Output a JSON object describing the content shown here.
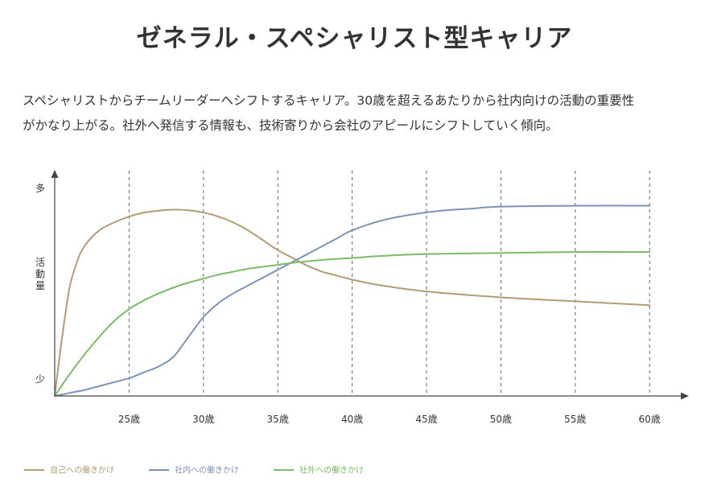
{
  "page": {
    "title": "ゼネラル・スペシャリスト型キャリア",
    "description_line1": "スペシャリストからチームリーダーへシフトするキャリア。30歳を超えるあたりから社内向けの活動の重要性",
    "description_line2": "がかなり上がる。社外へ発信する情報も、技術寄りから会社のアピールにシフトしていく傾向。"
  },
  "chart_data": {
    "type": "line",
    "title": "ゼネラル・スペシャリスト型キャリア",
    "xlabel": "",
    "ylabel": "活動量",
    "y_top_label": "多",
    "y_bottom_label": "少",
    "xlim": [
      20,
      62
    ],
    "ylim": [
      0,
      100
    ],
    "x_ticks": [
      25,
      30,
      35,
      40,
      45,
      50,
      55,
      60
    ],
    "x_tick_labels": [
      "25歳",
      "30歳",
      "35歳",
      "40歳",
      "45歳",
      "50歳",
      "55歳",
      "60歳"
    ],
    "grid": "vertical-dashed",
    "legend_position": "bottom-left",
    "series": [
      {
        "name": "自己への働きかけ",
        "color": "#b39b74",
        "x": [
          20,
          20.5,
          21,
          21.5,
          22,
          23,
          24,
          25,
          26,
          27,
          28,
          29,
          30,
          31,
          32,
          33,
          34,
          35,
          36,
          37,
          38,
          39,
          40,
          42,
          45,
          50,
          55,
          60
        ],
        "values": [
          0,
          30,
          55,
          68,
          76,
          84,
          88,
          91,
          93,
          94,
          94.5,
          94.2,
          93,
          91,
          88,
          84,
          79,
          74,
          70,
          66,
          63,
          61,
          59,
          56,
          53,
          50,
          48,
          46
        ]
      },
      {
        "name": "社内への働きかけ",
        "color": "#7b93b4",
        "x": [
          20,
          21,
          22,
          23,
          24,
          25,
          26,
          27,
          28,
          29,
          30,
          31,
          32,
          33,
          34,
          35,
          36,
          37,
          38,
          39,
          40,
          42,
          44,
          46,
          48,
          50,
          55,
          60
        ],
        "values": [
          0,
          1.5,
          3,
          5,
          7,
          9,
          12,
          15,
          20,
          30,
          40,
          47,
          52,
          56,
          60,
          64,
          68,
          72,
          76,
          80,
          84,
          89,
          92,
          94,
          95,
          96,
          96.5,
          96.5
        ]
      },
      {
        "name": "社外への働きかけ",
        "color": "#7db96a",
        "x": [
          20,
          21,
          22,
          23,
          24,
          25,
          26,
          27,
          28,
          29,
          30,
          31,
          32,
          33,
          34,
          35,
          36,
          38,
          40,
          42,
          45,
          50,
          55,
          60
        ],
        "values": [
          0,
          11,
          21,
          30,
          38,
          44,
          48.5,
          52,
          55,
          57.5,
          59.5,
          61.5,
          63,
          64.5,
          65.5,
          66.5,
          67.5,
          69,
          70,
          71,
          72,
          72.5,
          73,
          73
        ]
      }
    ]
  }
}
